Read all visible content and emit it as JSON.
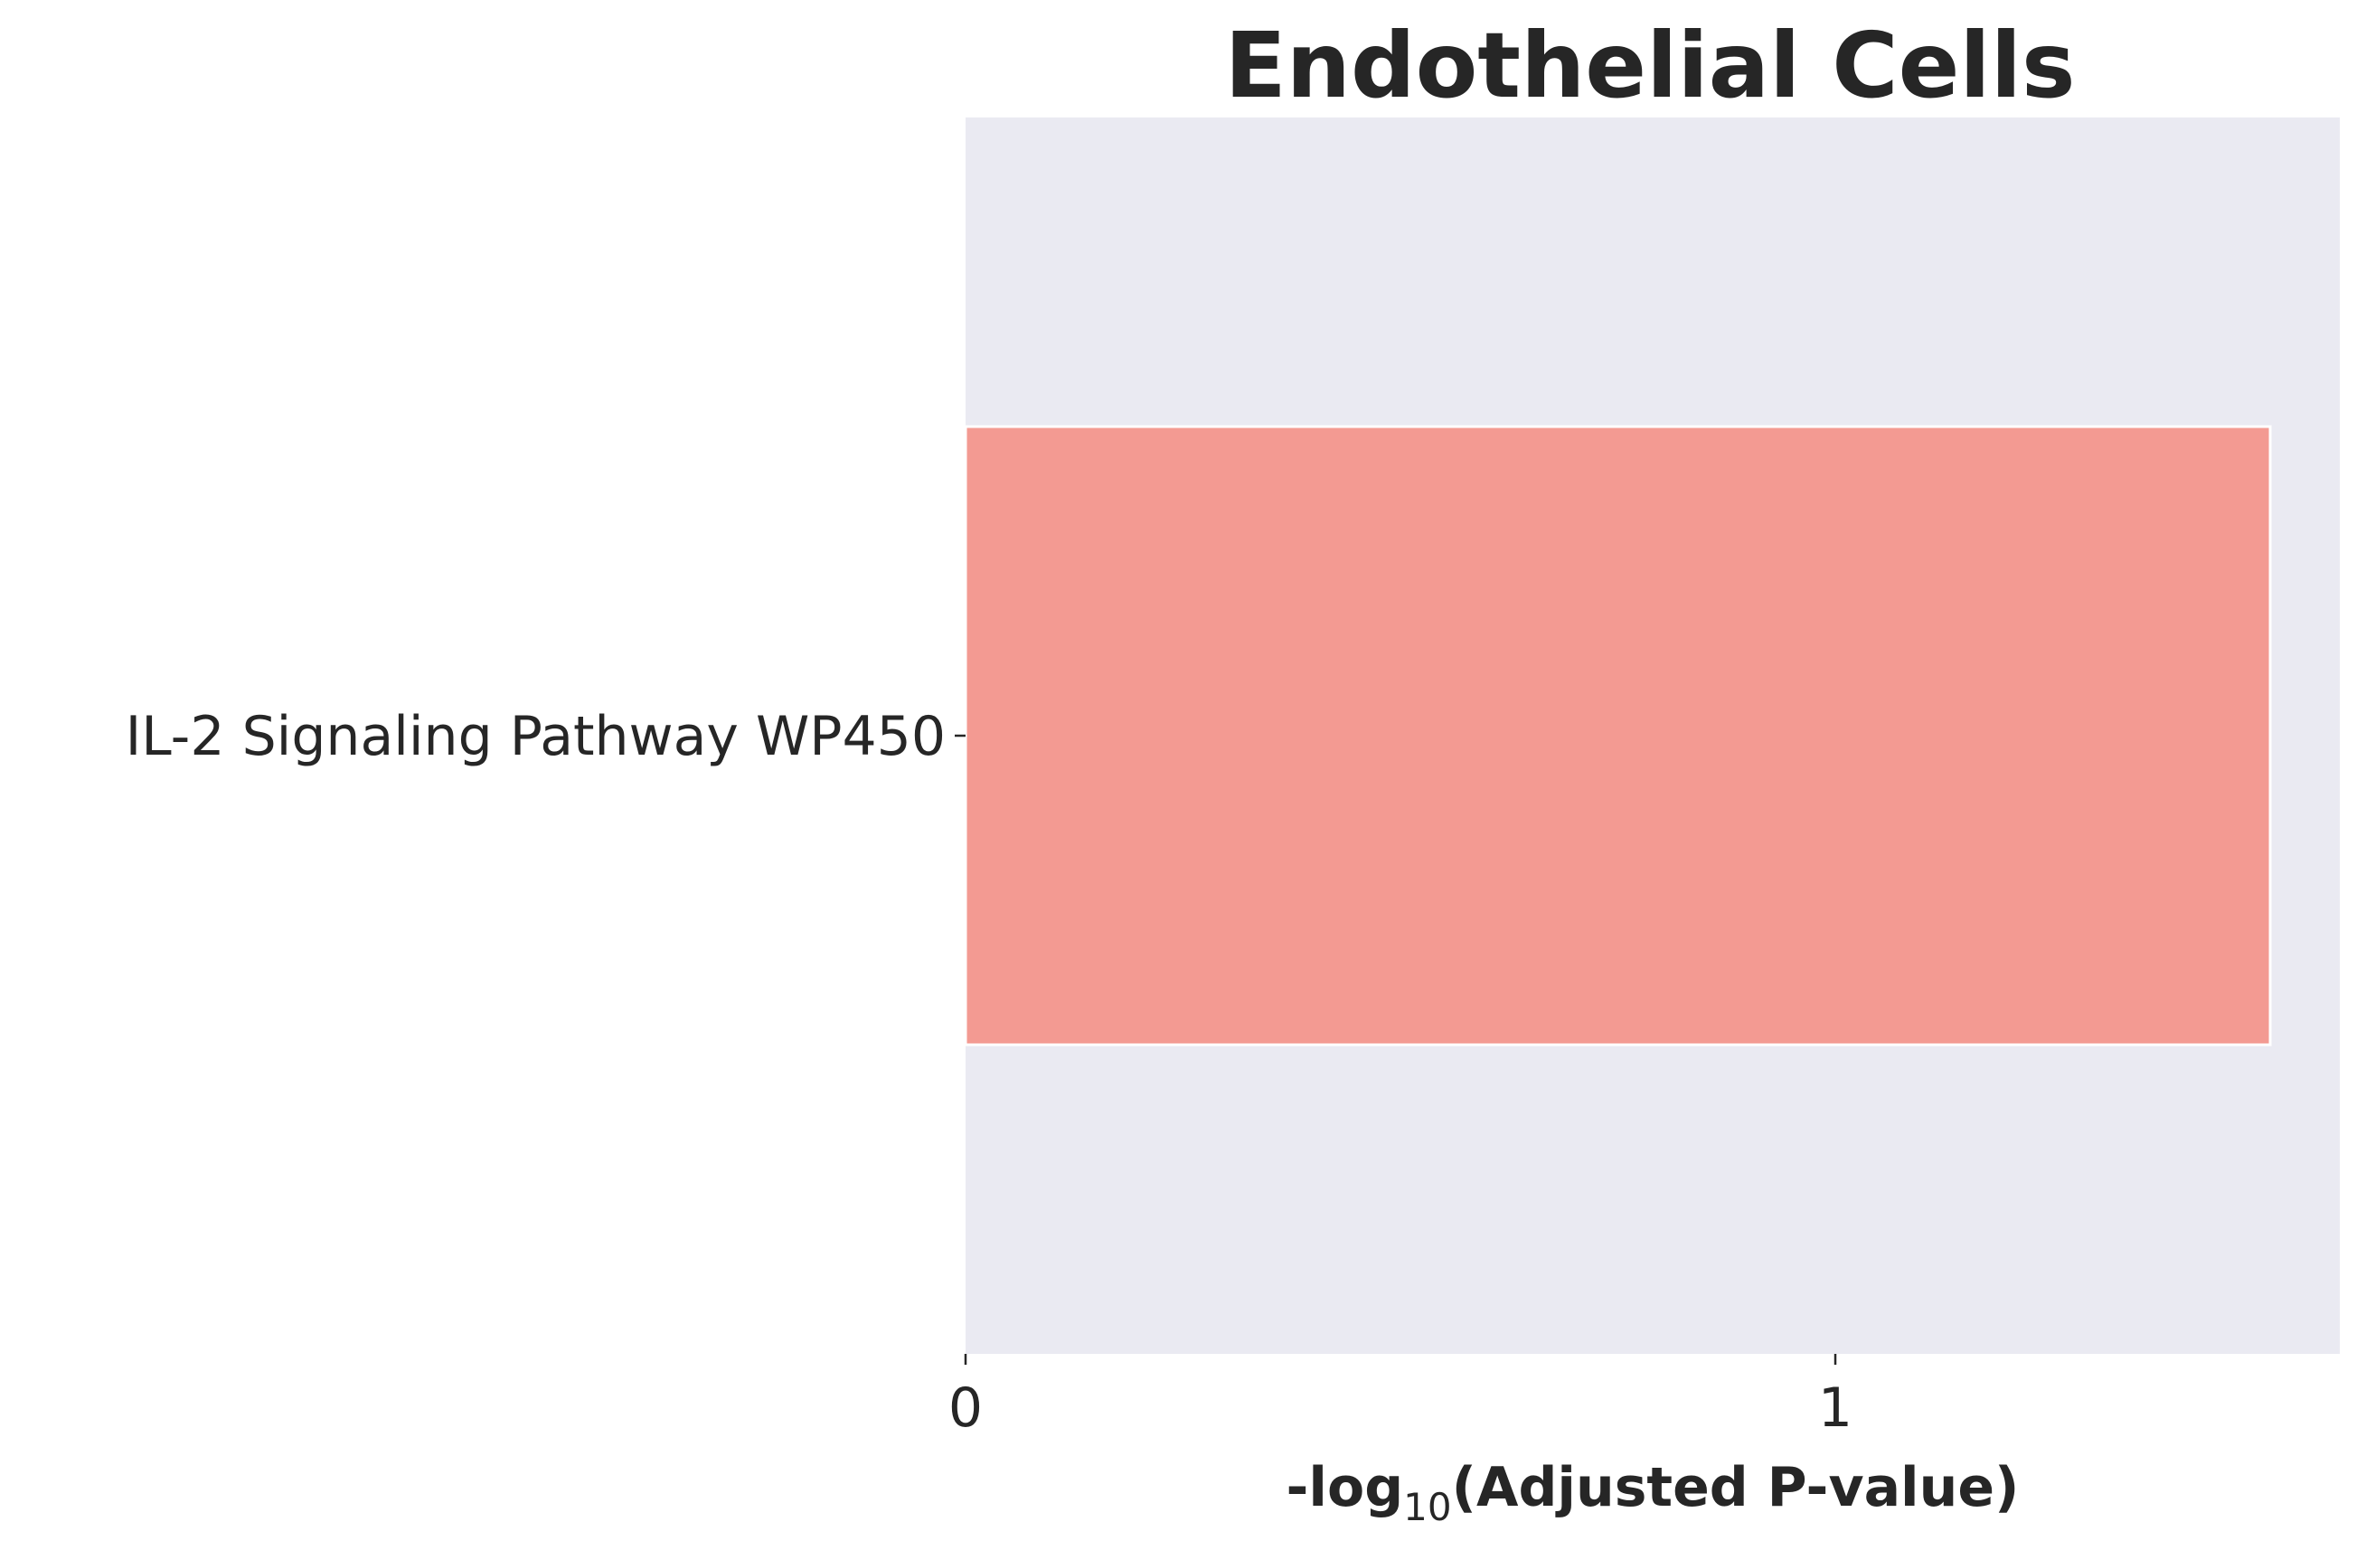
{
  "chart_data": {
    "type": "bar",
    "orientation": "horizontal",
    "title": "Endothelial Cells",
    "xlabel_prefix": "-log",
    "xlabel_subscript": "10",
    "xlabel_suffix": "(Adjusted P-value)",
    "ylabel": "",
    "categories": [
      "IL-2 Signaling Pathway WP450"
    ],
    "values": [
      1.5
    ],
    "xlim": [
      0,
      1.58
    ],
    "xticks": [
      0,
      1
    ],
    "xtick_labels": [
      "0",
      "1"
    ],
    "grid": false,
    "legend": "none",
    "colors": {
      "bar": "#f39a92",
      "bar_edge": "#ffffff",
      "plot_background": "#eaeaf2",
      "text": "#262626",
      "tick": "#262626"
    }
  }
}
